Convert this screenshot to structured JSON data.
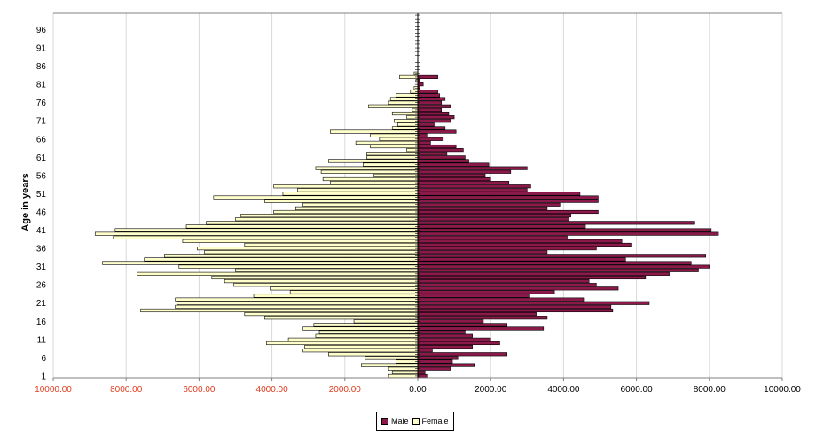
{
  "chart_data": {
    "type": "bar",
    "orientation": "horizontal",
    "title": "",
    "xlabel": "",
    "ylabel": "Age in years",
    "xlim": [
      -10000,
      10000
    ],
    "ylim": [
      1,
      100
    ],
    "x_ticks": [
      -10000,
      -8000,
      -6000,
      -4000,
      -2000,
      0,
      2000,
      4000,
      6000,
      8000,
      10000
    ],
    "x_tick_labels": [
      "10000.00",
      "8000.00",
      "6000.00",
      "4000.00",
      "2000.00",
      "0.00",
      "2000.00",
      "4000.00",
      "6000.00",
      "8000.00",
      "10000.00"
    ],
    "y_ticks": [
      1,
      6,
      11,
      16,
      21,
      26,
      31,
      36,
      41,
      46,
      51,
      56,
      61,
      66,
      71,
      76,
      81,
      86,
      91,
      96
    ],
    "grid": "vertical",
    "legend": "bottom-center",
    "ages": [
      1,
      2,
      3,
      4,
      5,
      6,
      7,
      8,
      9,
      10,
      11,
      12,
      13,
      14,
      15,
      16,
      17,
      18,
      19,
      20,
      21,
      22,
      23,
      24,
      25,
      26,
      27,
      28,
      29,
      30,
      31,
      32,
      33,
      34,
      35,
      36,
      37,
      38,
      39,
      40,
      41,
      42,
      43,
      44,
      45,
      46,
      47,
      48,
      49,
      50,
      51,
      52,
      53,
      54,
      55,
      56,
      57,
      58,
      59,
      60,
      61,
      62,
      63,
      64,
      65,
      66,
      67,
      68,
      69,
      70,
      71,
      72,
      73,
      74,
      75,
      76,
      77,
      78,
      79,
      80,
      81,
      82,
      83,
      84,
      85,
      86,
      87,
      88,
      89,
      90,
      91,
      92,
      93,
      94,
      95,
      96,
      97,
      98,
      99,
      100
    ],
    "series": [
      {
        "name": "Male",
        "color": "#8b1a4a",
        "values": [
          250,
          200,
          900,
          1550,
          950,
          1100,
          2450,
          400,
          1500,
          2250,
          2000,
          1500,
          1300,
          3450,
          2450,
          1800,
          3550,
          3250,
          5350,
          5300,
          6350,
          4550,
          3050,
          3750,
          5500,
          4900,
          4700,
          6250,
          6900,
          7700,
          8000,
          7500,
          5700,
          7900,
          3550,
          4900,
          5850,
          5600,
          4100,
          8250,
          8050,
          4600,
          7600,
          4150,
          4200,
          4950,
          3550,
          3900,
          4950,
          4950,
          4450,
          3000,
          3100,
          2500,
          2000,
          1850,
          2550,
          3000,
          1950,
          1400,
          1300,
          800,
          1250,
          1050,
          350,
          700,
          250,
          1050,
          750,
          450,
          900,
          1000,
          850,
          650,
          900,
          650,
          750,
          600,
          550,
          50,
          150,
          50,
          550,
          0,
          0,
          0,
          0,
          0,
          0,
          0,
          0,
          0,
          0,
          0,
          0,
          0,
          0,
          0,
          0,
          0
        ]
      },
      {
        "name": "Female",
        "color": "#ffffcc",
        "values": [
          800,
          700,
          800,
          1550,
          600,
          1450,
          2450,
          3150,
          3100,
          4150,
          3550,
          2800,
          2700,
          3150,
          2850,
          1750,
          4200,
          4750,
          7600,
          6650,
          6600,
          6650,
          4500,
          3500,
          4050,
          5050,
          5300,
          5650,
          7700,
          5000,
          6550,
          8650,
          7500,
          6950,
          5850,
          6050,
          4750,
          6450,
          8350,
          8850,
          8300,
          6350,
          5800,
          5000,
          4850,
          3950,
          3350,
          3150,
          4200,
          5600,
          3700,
          3300,
          3950,
          2400,
          2600,
          1200,
          2650,
          2800,
          1500,
          2450,
          1400,
          1400,
          300,
          1300,
          1700,
          1050,
          1300,
          2400,
          700,
          550,
          650,
          300,
          700,
          150,
          1350,
          800,
          750,
          600,
          200,
          100,
          0,
          50,
          500,
          100,
          0,
          0,
          0,
          0,
          0,
          0,
          0,
          0,
          0,
          0,
          0,
          0,
          0,
          0,
          0,
          0
        ]
      }
    ]
  }
}
